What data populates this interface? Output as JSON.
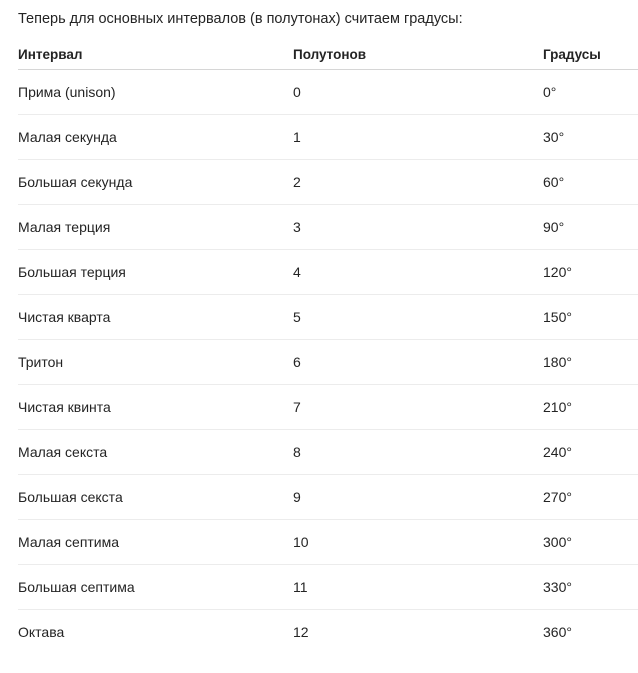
{
  "intro": "Теперь для основных интервалов (в полутонах) считаем градусы:",
  "table": {
    "headers": [
      "Интервал",
      "Полутонов",
      "Градусы"
    ],
    "rows": [
      [
        "Прима (unison)",
        "0",
        "0°"
      ],
      [
        "Малая секунда",
        "1",
        "30°"
      ],
      [
        "Большая секунда",
        "2",
        "60°"
      ],
      [
        "Малая терция",
        "3",
        "90°"
      ],
      [
        "Большая терция",
        "4",
        "120°"
      ],
      [
        "Чистая кварта",
        "5",
        "150°"
      ],
      [
        "Тритон",
        "6",
        "180°"
      ],
      [
        "Чистая квинта",
        "7",
        "210°"
      ],
      [
        "Малая секста",
        "8",
        "240°"
      ],
      [
        "Большая секста",
        "9",
        "270°"
      ],
      [
        "Малая септима",
        "10",
        "300°"
      ],
      [
        "Большая септима",
        "11",
        "330°"
      ],
      [
        "Октава",
        "12",
        "360°"
      ]
    ]
  }
}
